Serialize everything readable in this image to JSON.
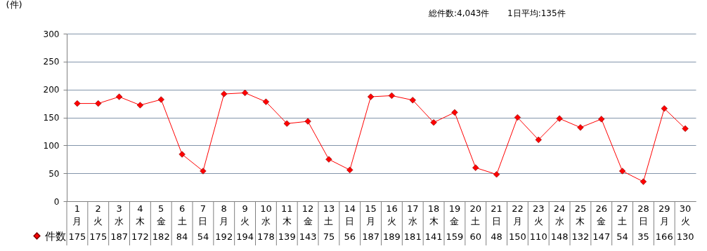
{
  "chart_data": {
    "type": "line",
    "ylabel": "(件)",
    "annotations": [
      "総件数:4,043件",
      "1日平均:135件"
    ],
    "categories": [
      "1\n月",
      "2\n火",
      "3\n水",
      "4\n木",
      "5\n金",
      "6\n土",
      "7\n日",
      "8\n月",
      "9\n火",
      "10\n水",
      "11\n木",
      "12\n金",
      "13\n土",
      "14\n日",
      "15\n月",
      "16\n火",
      "17\n水",
      "18\n木",
      "19\n金",
      "20\n土",
      "21\n日",
      "22\n月",
      "23\n火",
      "24\n水",
      "25\n木",
      "26\n金",
      "27\n土",
      "28\n日",
      "29\n月",
      "30\n火"
    ],
    "series": [
      {
        "name": "件数",
        "color": "#ff0000",
        "values": [
          175,
          175,
          187,
          172,
          182,
          84,
          54,
          192,
          194,
          178,
          139,
          143,
          75,
          56,
          187,
          189,
          181,
          141,
          159,
          60,
          48,
          150,
          110,
          148,
          132,
          147,
          54,
          35,
          166,
          130
        ]
      }
    ],
    "ylim": [
      0,
      300
    ],
    "yticks": [
      0,
      50,
      100,
      150,
      200,
      250,
      300
    ],
    "grid": "y",
    "marker": "diamond",
    "line_style": "solid",
    "legend": "bottom left",
    "data_labels": true
  }
}
